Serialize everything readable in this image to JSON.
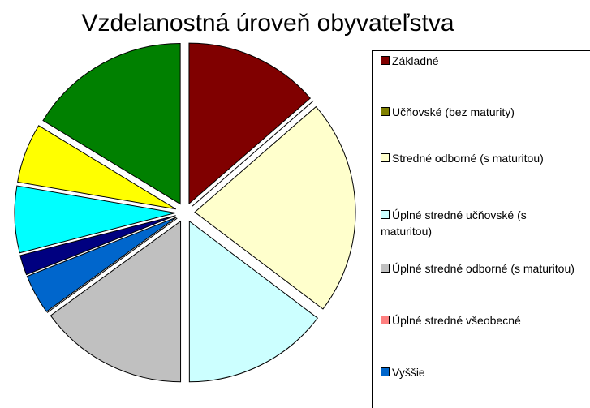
{
  "chart_data": {
    "type": "pie",
    "title": "Vzdelanostná úroveň obyvateľstva",
    "categories": [
      "Základné",
      "Učňovské (bez maturity)",
      "Stredné odborné (s maturitou)",
      "Úplné stredné učňovské (s maturitou)",
      "Úplné stredné odborné (s maturitou)",
      "Úplné stredné všeobecné",
      "Vyššie",
      null,
      null,
      null,
      null
    ],
    "values": [
      13.6,
      0,
      21.7,
      14.7,
      15,
      0,
      4,
      2,
      6.7,
      6,
      16.3
    ],
    "colors": [
      "#800000",
      "#808000",
      "#ffffcc",
      "#ccffff",
      "#c0c0c0",
      "#ff8080",
      "#0066cc",
      "#000080",
      "#00ffff",
      "#ffff00",
      "#008000"
    ]
  }
}
